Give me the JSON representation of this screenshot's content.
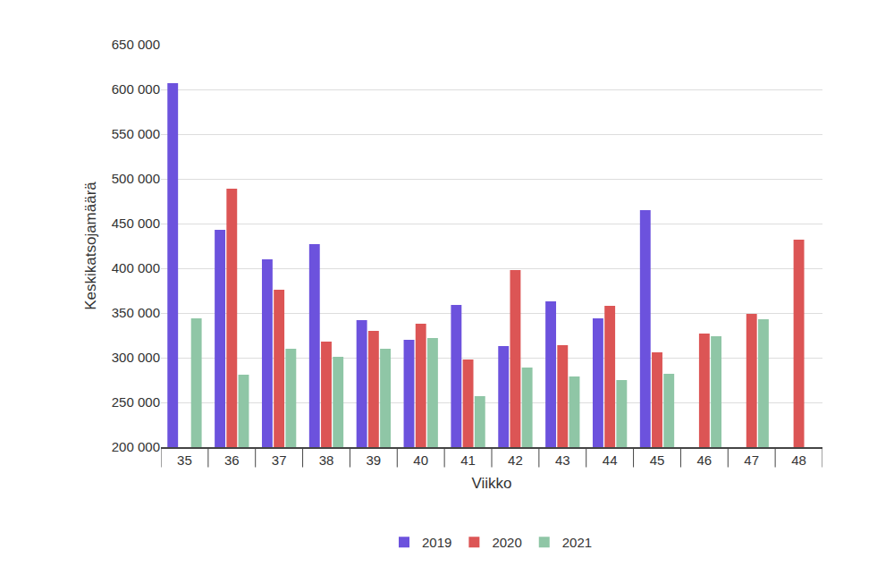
{
  "chart_data": {
    "type": "bar",
    "x_label": "Viikko",
    "y_label": "Keskikatsojamäärä",
    "categories": [
      "35",
      "36",
      "37",
      "38",
      "39",
      "40",
      "41",
      "42",
      "43",
      "44",
      "45",
      "46",
      "47",
      "48"
    ],
    "series": [
      {
        "name": "2019",
        "color": "#6c52dd",
        "values": [
          607000,
          443000,
          410000,
          427000,
          342000,
          320000,
          359000,
          313000,
          363000,
          344000,
          465000,
          null,
          null,
          null
        ]
      },
      {
        "name": "2020",
        "color": "#dc5555",
        "values": [
          null,
          489000,
          376000,
          318000,
          330000,
          338000,
          298000,
          398000,
          314000,
          358000,
          306000,
          327000,
          349000,
          432000
        ]
      },
      {
        "name": "2021",
        "color": "#8fc6a6",
        "values": [
          344000,
          281000,
          310000,
          301000,
          310000,
          322000,
          257000,
          289000,
          279000,
          275000,
          282000,
          324000,
          343000,
          null
        ]
      }
    ],
    "ylim": [
      200000,
      650000
    ],
    "yticks": [
      {
        "value": 200000,
        "label": "200 000"
      },
      {
        "value": 250000,
        "label": "250 000"
      },
      {
        "value": 300000,
        "label": "300 000"
      },
      {
        "value": 350000,
        "label": "350 000"
      },
      {
        "value": 400000,
        "label": "400 000"
      },
      {
        "value": 450000,
        "label": "450 000"
      },
      {
        "value": 500000,
        "label": "500 000"
      },
      {
        "value": 550000,
        "label": "550 000"
      },
      {
        "value": 600000,
        "label": "600 000"
      },
      {
        "value": 650000,
        "label": "650 000"
      }
    ],
    "grid": true,
    "legend": "bottom"
  }
}
